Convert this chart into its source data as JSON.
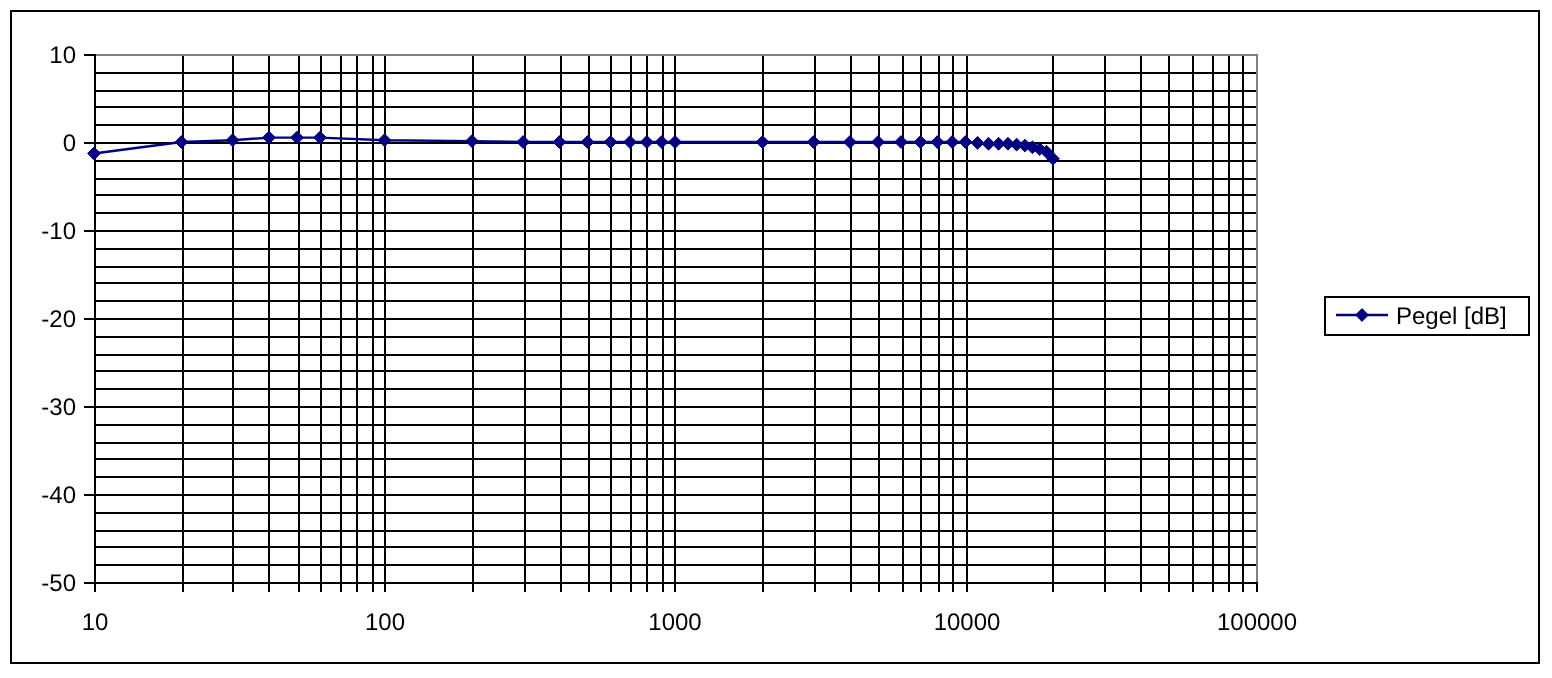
{
  "chart_data": {
    "type": "line",
    "x": [
      10,
      20,
      30,
      40,
      50,
      60,
      100,
      200,
      300,
      400,
      500,
      600,
      700,
      800,
      900,
      1000,
      2000,
      3000,
      4000,
      5000,
      6000,
      7000,
      8000,
      9000,
      10000,
      11000,
      12000,
      13000,
      14000,
      15000,
      16000,
      17000,
      18000,
      19000,
      20000
    ],
    "series": [
      {
        "name": "Pegel [dB]",
        "color": "#000080",
        "values": [
          -1.3,
          0,
          0.2,
          0.5,
          0.5,
          0.5,
          0.2,
          0.1,
          0,
          0,
          0,
          0,
          0,
          0,
          0,
          0,
          0,
          0,
          0,
          0,
          0,
          0,
          0,
          0,
          0,
          -0.1,
          -0.2,
          -0.2,
          -0.2,
          -0.3,
          -0.4,
          -0.6,
          -0.8,
          -1.1,
          -1.9
        ]
      }
    ],
    "xlim": [
      10,
      100000
    ],
    "ylim": [
      -50,
      10
    ],
    "xticks": [
      10,
      {
        "value": 20,
        "label": null
      },
      {
        "value": 30,
        "label": null
      },
      {
        "value": 40,
        "label": null
      },
      {
        "value": 50,
        "label": null
      },
      {
        "value": 60,
        "label": null
      },
      {
        "value": 70,
        "label": null
      },
      {
        "value": 80,
        "label": null
      },
      {
        "value": 90,
        "label": null
      },
      100,
      {
        "value": 200,
        "label": null
      },
      {
        "value": 300,
        "label": null
      },
      {
        "value": 400,
        "label": null
      },
      {
        "value": 500,
        "label": null
      },
      {
        "value": 600,
        "label": null
      },
      {
        "value": 700,
        "label": null
      },
      {
        "value": 800,
        "label": null
      },
      {
        "value": 900,
        "label": null
      },
      1000,
      {
        "value": 2000,
        "label": null
      },
      {
        "value": 3000,
        "label": null
      },
      {
        "value": 4000,
        "label": null
      },
      {
        "value": 5000,
        "label": null
      },
      {
        "value": 6000,
        "label": null
      },
      {
        "value": 7000,
        "label": null
      },
      {
        "value": 8000,
        "label": null
      },
      {
        "value": 9000,
        "label": null
      },
      10000,
      {
        "value": 20000,
        "label": null
      },
      {
        "value": 30000,
        "label": null
      },
      {
        "value": 40000,
        "label": null
      },
      {
        "value": 50000,
        "label": null
      },
      {
        "value": 60000,
        "label": null
      },
      {
        "value": 70000,
        "label": null
      },
      {
        "value": 80000,
        "label": null
      },
      {
        "value": 90000,
        "label": null
      },
      100000
    ],
    "yticks": [
      -50,
      {
        "value": -48,
        "label": null
      },
      {
        "value": -46,
        "label": null
      },
      {
        "value": -44,
        "label": null
      },
      {
        "value": -42,
        "label": null
      },
      -40,
      {
        "value": -38,
        "label": null
      },
      {
        "value": -36,
        "label": null
      },
      {
        "value": -34,
        "label": null
      },
      {
        "value": -32,
        "label": null
      },
      -30,
      {
        "value": -28,
        "label": null
      },
      {
        "value": -26,
        "label": null
      },
      {
        "value": -24,
        "label": null
      },
      {
        "value": -22,
        "label": null
      },
      -20,
      {
        "value": -18,
        "label": null
      },
      {
        "value": -16,
        "label": null
      },
      {
        "value": -14,
        "label": null
      },
      {
        "value": -12,
        "label": null
      },
      -10,
      {
        "value": -8,
        "label": null
      },
      {
        "value": -6,
        "label": null
      },
      {
        "value": -4,
        "label": null
      },
      {
        "value": -2,
        "label": null
      },
      0,
      {
        "value": 2,
        "label": null
      },
      {
        "value": 4,
        "label": null
      },
      {
        "value": 6,
        "label": null
      },
      {
        "value": 8,
        "label": null
      },
      10
    ],
    "log": "x",
    "grid": true,
    "legend": "right",
    "marker": "diamond",
    "line_style": "solid"
  }
}
